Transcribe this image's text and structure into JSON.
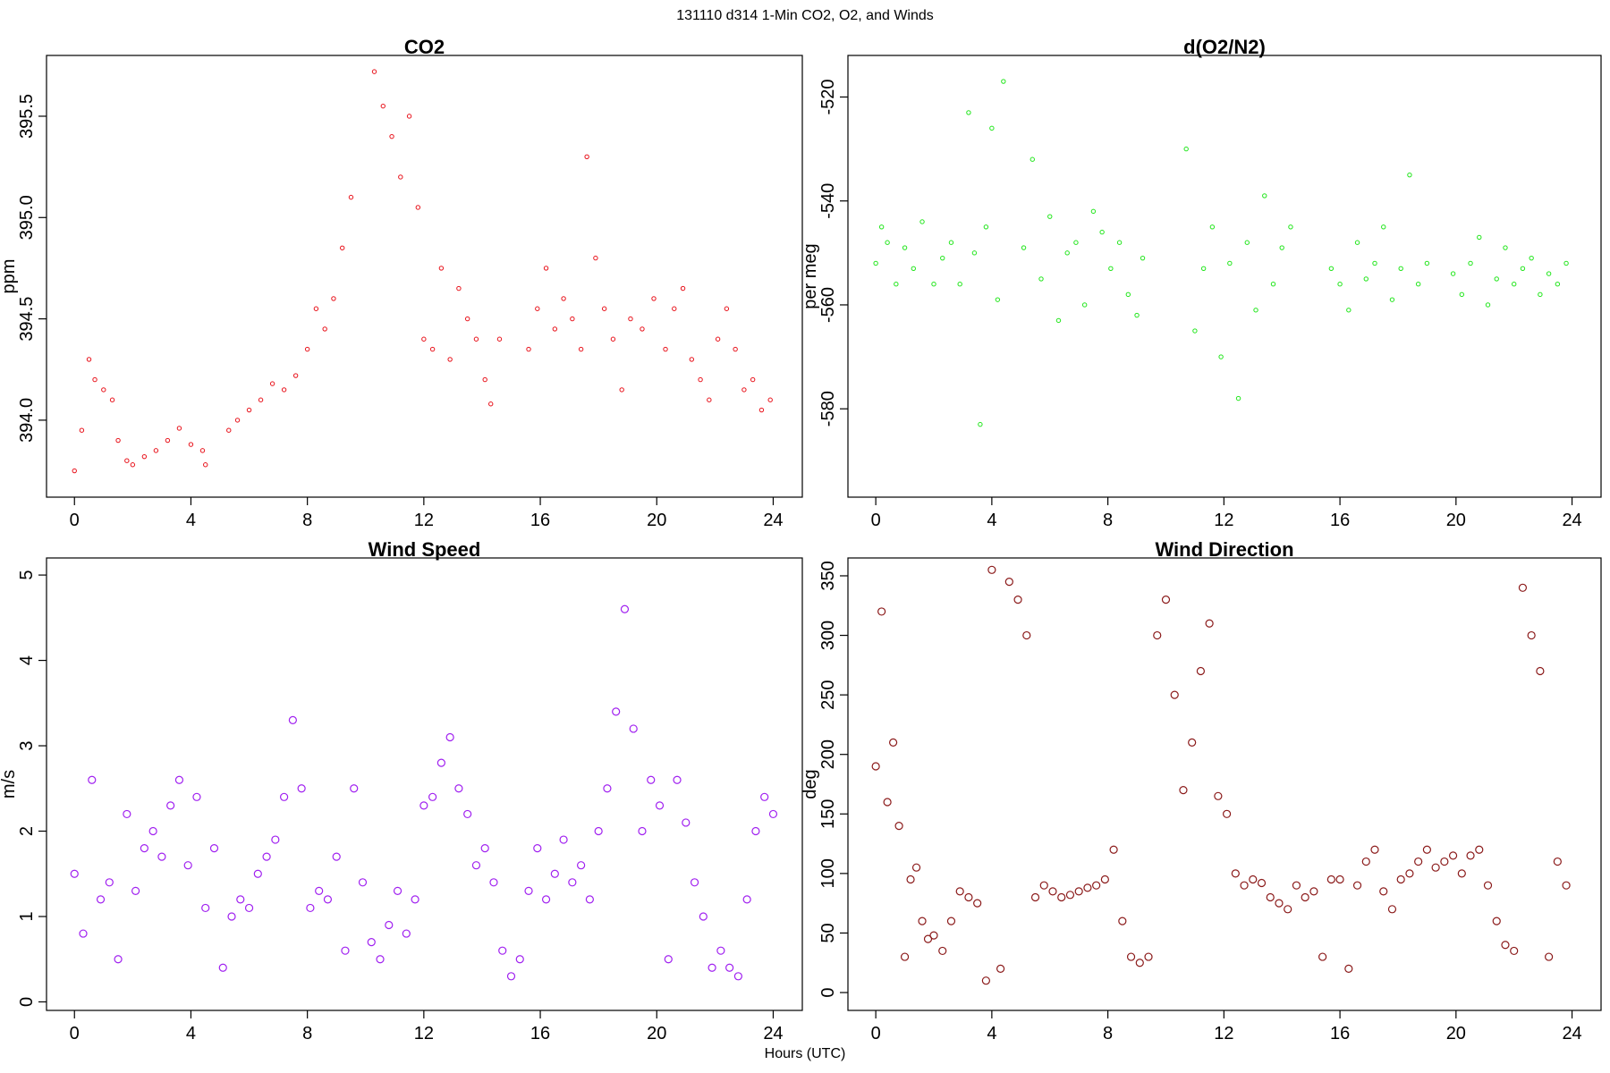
{
  "figure": {
    "title": "131110   d314   1-Min CO2, O2, and Winds",
    "xlabel": "Hours (UTC)",
    "x_ticks": [
      0,
      4,
      8,
      12,
      16,
      20,
      24
    ]
  },
  "chart_data": [
    {
      "id": "co2",
      "type": "scatter",
      "title": "CO2",
      "xlabel": "",
      "ylabel": "ppm",
      "xlim": [
        -0.96,
        25.0
      ],
      "ylim": [
        393.62,
        395.8
      ],
      "yticks": [
        394.0,
        394.5,
        395.0,
        395.5
      ],
      "ytick_labels": [
        "394.0",
        "394.5",
        "395.0",
        "395.5"
      ],
      "marker_color": "#e8121b",
      "marker_size": "small",
      "x": [
        0.0,
        0.25,
        0.5,
        0.7,
        1.0,
        1.3,
        1.5,
        1.8,
        2.0,
        2.4,
        2.8,
        3.2,
        3.6,
        4.0,
        4.4,
        4.5,
        5.3,
        5.6,
        6.0,
        6.4,
        6.8,
        7.2,
        7.6,
        8.0,
        8.3,
        8.6,
        8.9,
        9.2,
        9.5,
        10.3,
        10.6,
        10.9,
        11.2,
        11.5,
        11.8,
        12.0,
        12.3,
        12.6,
        12.9,
        13.2,
        13.5,
        13.8,
        14.1,
        14.3,
        14.6,
        15.6,
        15.9,
        16.2,
        16.5,
        16.8,
        17.1,
        17.4,
        17.6,
        17.9,
        18.2,
        18.5,
        18.8,
        19.1,
        19.5,
        19.9,
        20.3,
        20.6,
        20.9,
        21.2,
        21.5,
        21.8,
        22.1,
        22.4,
        22.7,
        23.0,
        23.3,
        23.6,
        23.9
      ],
      "y": [
        393.75,
        393.95,
        394.3,
        394.2,
        394.15,
        394.1,
        393.9,
        393.8,
        393.78,
        393.82,
        393.85,
        393.9,
        393.96,
        393.88,
        393.85,
        393.78,
        393.95,
        394.0,
        394.05,
        394.1,
        394.18,
        394.15,
        394.22,
        394.35,
        394.55,
        394.45,
        394.6,
        394.85,
        395.1,
        395.72,
        395.55,
        395.4,
        395.2,
        395.5,
        395.05,
        394.4,
        394.35,
        394.75,
        394.3,
        394.65,
        394.5,
        394.4,
        394.2,
        394.08,
        394.4,
        394.35,
        394.55,
        394.75,
        394.45,
        394.6,
        394.5,
        394.35,
        395.3,
        394.8,
        394.55,
        394.4,
        394.15,
        394.5,
        394.45,
        394.6,
        394.35,
        394.55,
        394.65,
        394.3,
        394.2,
        394.1,
        394.4,
        394.55,
        394.35,
        394.15,
        394.2,
        394.05,
        394.1
      ]
    },
    {
      "id": "o2",
      "type": "scatter",
      "title": "d(O2/N2)",
      "xlabel": "",
      "ylabel": "per meg",
      "xlim": [
        -0.96,
        25.0
      ],
      "ylim": [
        -597,
        -512
      ],
      "yticks": [
        -580,
        -560,
        -540,
        -520
      ],
      "ytick_labels": [
        "-580",
        "-560",
        "-540",
        "-520"
      ],
      "marker_color": "#22e61c",
      "marker_size": "small",
      "x": [
        0.0,
        0.2,
        0.4,
        0.7,
        1.0,
        1.3,
        1.6,
        2.0,
        2.3,
        2.6,
        2.9,
        3.2,
        3.4,
        3.6,
        3.8,
        4.0,
        4.2,
        4.4,
        5.1,
        5.4,
        5.7,
        6.0,
        6.3,
        6.6,
        6.9,
        7.2,
        7.5,
        7.8,
        8.1,
        8.4,
        8.7,
        9.0,
        9.2,
        10.7,
        11.0,
        11.3,
        11.6,
        11.9,
        12.2,
        12.5,
        12.8,
        13.1,
        13.4,
        13.7,
        14.0,
        14.3,
        15.7,
        16.0,
        16.3,
        16.6,
        16.9,
        17.2,
        17.5,
        17.8,
        18.1,
        18.4,
        18.7,
        19.0,
        19.9,
        20.2,
        20.5,
        20.8,
        21.1,
        21.4,
        21.7,
        22.0,
        22.3,
        22.6,
        22.9,
        23.2,
        23.5,
        23.8
      ],
      "y": [
        -552,
        -545,
        -548,
        -556,
        -549,
        -553,
        -544,
        -556,
        -551,
        -548,
        -556,
        -523,
        -550,
        -583,
        -545,
        -526,
        -559,
        -517,
        -549,
        -532,
        -555,
        -543,
        -563,
        -550,
        -548,
        -560,
        -542,
        -546,
        -553,
        -548,
        -558,
        -562,
        -551,
        -530,
        -565,
        -553,
        -545,
        -570,
        -552,
        -578,
        -548,
        -561,
        -539,
        -556,
        -549,
        -545,
        -553,
        -556,
        -561,
        -548,
        -555,
        -552,
        -545,
        -559,
        -553,
        -535,
        -556,
        -552,
        -554,
        -558,
        -552,
        -547,
        -560,
        -555,
        -549,
        -556,
        -553,
        -551,
        -558,
        -554,
        -556,
        -552
      ]
    },
    {
      "id": "wind_speed",
      "type": "scatter",
      "title": "Wind Speed",
      "xlabel": "",
      "ylabel": "m/s",
      "xlim": [
        -0.96,
        25.0
      ],
      "ylim": [
        -0.1,
        5.2
      ],
      "yticks": [
        0,
        1,
        2,
        3,
        4,
        5
      ],
      "ytick_labels": [
        "0",
        "1",
        "2",
        "3",
        "4",
        "5"
      ],
      "marker_color": "#a020f0",
      "marker_size": "medium",
      "x": [
        0.0,
        0.3,
        0.6,
        0.9,
        1.2,
        1.5,
        1.8,
        2.1,
        2.4,
        2.7,
        3.0,
        3.3,
        3.6,
        3.9,
        4.2,
        4.5,
        4.8,
        5.1,
        5.4,
        5.7,
        6.0,
        6.3,
        6.6,
        6.9,
        7.2,
        7.5,
        7.8,
        8.1,
        8.4,
        8.7,
        9.0,
        9.3,
        9.6,
        9.9,
        10.2,
        10.5,
        10.8,
        11.1,
        11.4,
        11.7,
        12.0,
        12.3,
        12.6,
        12.9,
        13.2,
        13.5,
        13.8,
        14.1,
        14.4,
        14.7,
        15.0,
        15.3,
        15.6,
        15.9,
        16.2,
        16.5,
        16.8,
        17.1,
        17.4,
        17.7,
        18.0,
        18.3,
        18.6,
        18.9,
        19.2,
        19.5,
        19.8,
        20.1,
        20.4,
        20.7,
        21.0,
        21.3,
        21.6,
        21.9,
        22.2,
        22.5,
        22.8,
        23.1,
        23.4,
        23.7,
        24.0
      ],
      "y": [
        1.5,
        0.8,
        2.6,
        1.2,
        1.4,
        0.5,
        2.2,
        1.3,
        1.8,
        2.0,
        1.7,
        2.3,
        2.6,
        1.6,
        2.4,
        1.1,
        1.8,
        0.4,
        1.0,
        1.2,
        1.1,
        1.5,
        1.7,
        1.9,
        2.4,
        3.3,
        2.5,
        1.1,
        1.3,
        1.2,
        1.7,
        0.6,
        2.5,
        1.4,
        0.7,
        0.5,
        0.9,
        1.3,
        0.8,
        1.2,
        2.3,
        2.4,
        2.8,
        3.1,
        2.5,
        2.2,
        1.6,
        1.8,
        1.4,
        0.6,
        0.3,
        0.5,
        1.3,
        1.8,
        1.2,
        1.5,
        1.9,
        1.4,
        1.6,
        1.2,
        2.0,
        2.5,
        3.4,
        4.6,
        3.2,
        2.0,
        2.6,
        2.3,
        0.5,
        2.6,
        2.1,
        1.4,
        1.0,
        0.4,
        0.6,
        0.4,
        0.3,
        1.2,
        2.0,
        2.4,
        2.2
      ]
    },
    {
      "id": "wind_direction",
      "type": "scatter",
      "title": "Wind Direction",
      "xlabel": "",
      "ylabel": "deg",
      "xlim": [
        -0.96,
        25.0
      ],
      "ylim": [
        -15,
        365
      ],
      "yticks": [
        0,
        50,
        100,
        150,
        200,
        250,
        300,
        350
      ],
      "ytick_labels": [
        "0",
        "50",
        "100",
        "150",
        "200",
        "250",
        "300",
        "350"
      ],
      "marker_color": "#8b1a1a",
      "marker_size": "medium",
      "x": [
        0.0,
        0.2,
        0.4,
        0.6,
        0.8,
        1.0,
        1.2,
        1.4,
        1.6,
        1.8,
        2.0,
        2.3,
        2.6,
        2.9,
        3.2,
        3.5,
        3.8,
        4.0,
        4.3,
        4.6,
        4.9,
        5.2,
        5.5,
        5.8,
        6.1,
        6.4,
        6.7,
        7.0,
        7.3,
        7.6,
        7.9,
        8.2,
        8.5,
        8.8,
        9.1,
        9.4,
        9.7,
        10.0,
        10.3,
        10.6,
        10.9,
        11.2,
        11.5,
        11.8,
        12.1,
        12.4,
        12.7,
        13.0,
        13.3,
        13.6,
        13.9,
        14.2,
        14.5,
        14.8,
        15.1,
        15.4,
        15.7,
        16.0,
        16.3,
        16.6,
        16.9,
        17.2,
        17.5,
        17.8,
        18.1,
        18.4,
        18.7,
        19.0,
        19.3,
        19.6,
        19.9,
        20.2,
        20.5,
        20.8,
        21.1,
        21.4,
        21.7,
        22.0,
        22.3,
        22.6,
        22.9,
        23.2,
        23.5,
        23.8
      ],
      "y": [
        190,
        320,
        160,
        210,
        140,
        30,
        95,
        105,
        60,
        45,
        48,
        35,
        60,
        85,
        80,
        75,
        10,
        355,
        20,
        345,
        330,
        300,
        80,
        90,
        85,
        80,
        82,
        85,
        88,
        90,
        95,
        120,
        60,
        30,
        25,
        30,
        300,
        330,
        250,
        170,
        210,
        270,
        310,
        165,
        150,
        100,
        90,
        95,
        92,
        80,
        75,
        70,
        90,
        80,
        85,
        30,
        95,
        95,
        20,
        90,
        110,
        120,
        85,
        70,
        95,
        100,
        110,
        120,
        105,
        110,
        115,
        100,
        115,
        120,
        90,
        60,
        40,
        35,
        340,
        300,
        270,
        30,
        110,
        90
      ]
    }
  ]
}
